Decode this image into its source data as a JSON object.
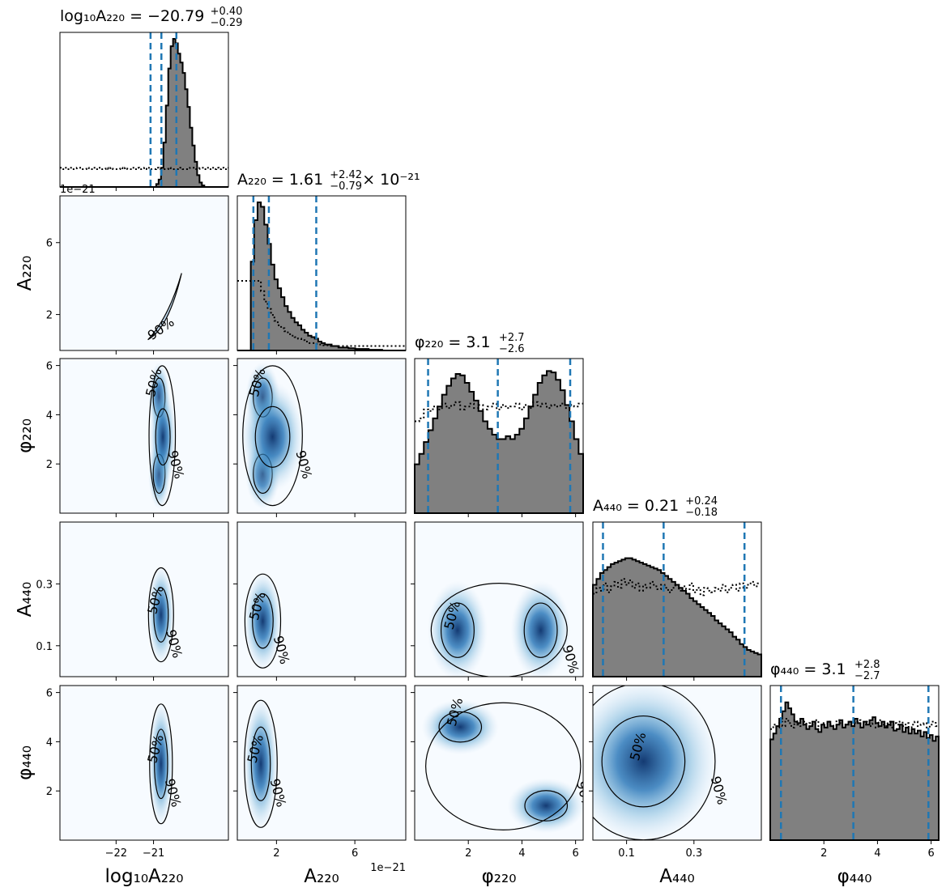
{
  "chart_data": {
    "type": "corner",
    "parameters": [
      {
        "key": "logA220",
        "xlabel": "log₁₀A₂₂₀",
        "range": [
          -23.5,
          -19.0
        ],
        "ticks": [
          -22,
          -21
        ],
        "tick_labels": [
          "−22",
          "−21"
        ]
      },
      {
        "key": "A220",
        "xlabel": "A₂₂₀",
        "range": [
          0.0,
          8.6
        ],
        "ticks": [
          2,
          6
        ],
        "tick_labels": [
          "2",
          "6"
        ],
        "offset": "1e−21"
      },
      {
        "key": "phi220",
        "xlabel": "φ₂₂₀",
        "range": [
          0.0,
          6.283
        ],
        "ticks": [
          2,
          4,
          6
        ],
        "tick_labels": [
          "2",
          "4",
          "6"
        ]
      },
      {
        "key": "A440",
        "xlabel": "A₄₄₀",
        "range": [
          0.0,
          0.5
        ],
        "ticks": [
          0.1,
          0.3
        ],
        "tick_labels": [
          "0.1",
          "0.3"
        ]
      },
      {
        "key": "phi440",
        "xlabel": "φ₄₄₀",
        "range": [
          0.0,
          6.283
        ],
        "ticks": [
          2,
          4,
          6
        ],
        "tick_labels": [
          "2",
          "4",
          "6"
        ]
      }
    ],
    "titles": [
      {
        "main": "log₁₀A₂₂₀ = −20.79",
        "plus": "+0.40",
        "minus": "−0.29",
        "tail": ""
      },
      {
        "main": "A₂₂₀ = 1.61",
        "plus": "+2.42",
        "minus": "−0.79",
        "tail": "× 10⁻²¹"
      },
      {
        "main": "φ₂₂₀ = 3.1",
        "plus": "+2.7",
        "minus": "−2.6",
        "tail": ""
      },
      {
        "main": "A₄₄₀ = 0.21",
        "plus": "+0.24",
        "minus": "−0.18",
        "tail": ""
      },
      {
        "main": "φ₄₄₀ = 3.1",
        "plus": "+2.8",
        "minus": "−2.7",
        "tail": ""
      }
    ],
    "quantiles": [
      [
        -21.08,
        -20.79,
        -20.39
      ],
      [
        0.82,
        1.61,
        4.03
      ],
      [
        0.5,
        3.1,
        5.8
      ],
      [
        0.03,
        0.21,
        0.45
      ],
      [
        0.4,
        3.1,
        5.9
      ]
    ],
    "histograms": [
      {
        "values": [
          0,
          0,
          0,
          0,
          0,
          0,
          0,
          0,
          0,
          0,
          0,
          0,
          0,
          0,
          0,
          0,
          0,
          0,
          0,
          0,
          0,
          0,
          0,
          0,
          0,
          0,
          0,
          0,
          0,
          0,
          0,
          0,
          0,
          0,
          0,
          0,
          0,
          0,
          0,
          0,
          0.02,
          0.05,
          0.13,
          0.3,
          0.55,
          0.8,
          0.95,
          1.0,
          0.97,
          0.9,
          0.84,
          0.77,
          0.66,
          0.54,
          0.4,
          0.28,
          0.17,
          0.08,
          0.03,
          0.01,
          0,
          0,
          0,
          0,
          0,
          0,
          0,
          0,
          0,
          0
        ],
        "prior": [
          0.13,
          0.12,
          0.13,
          0.12,
          0.13,
          0.12,
          0.12,
          0.13,
          0.13,
          0.12,
          0.12,
          0.13,
          0.12,
          0.12,
          0.13,
          0.12,
          0.13,
          0.12,
          0.12,
          0.13,
          0.12,
          0.13,
          0.12,
          0.12,
          0.12,
          0.13,
          0.12,
          0.13,
          0.12,
          0.12,
          0.13,
          0.12,
          0.13,
          0.12,
          0.12,
          0.13,
          0.12,
          0.13,
          0.12,
          0.12,
          0.13,
          0.12,
          0.12,
          0.12,
          0.12,
          0.13,
          0.12,
          0.12,
          0.12,
          0.12,
          0.13,
          0.12,
          0.12,
          0.12,
          0.13,
          0.13,
          0.12,
          0.12,
          0.13,
          0.13,
          0.12,
          0.13,
          0.12,
          0.13,
          0.12,
          0.13,
          0.12,
          0.13,
          0.12,
          0.13
        ]
      },
      {
        "values": [
          0,
          0,
          0,
          0,
          0.6,
          0.88,
          1.0,
          0.97,
          0.85,
          0.72,
          0.58,
          0.48,
          0.42,
          0.36,
          0.3,
          0.26,
          0.22,
          0.19,
          0.17,
          0.14,
          0.12,
          0.1,
          0.09,
          0.08,
          0.06,
          0.05,
          0.04,
          0.04,
          0.03,
          0.03,
          0.02,
          0.02,
          0.02,
          0.015,
          0.015,
          0.01,
          0.01,
          0.01,
          0.01,
          0.005,
          0.005,
          0.005,
          0.005,
          0,
          0,
          0,
          0,
          0,
          0,
          0
        ],
        "prior": [
          0.47,
          0.47,
          0.47,
          0.47,
          0.47,
          0.47,
          0.47,
          0.4,
          0.33,
          0.28,
          0.24,
          0.2,
          0.17,
          0.15,
          0.13,
          0.11,
          0.1,
          0.09,
          0.08,
          0.07,
          0.06,
          0.05,
          0.05,
          0.045,
          0.04,
          0.035,
          0.035,
          0.03,
          0.03,
          0.03,
          0.03,
          0.03,
          0.03,
          0.03,
          0.03,
          0.03,
          0.03,
          0.03,
          0.03,
          0.03,
          0.03,
          0.03,
          0.03,
          0.03,
          0.03,
          0.03,
          0.03,
          0.03,
          0.03,
          0.03
        ]
      },
      {
        "values": [
          0.33,
          0.4,
          0.48,
          0.56,
          0.64,
          0.72,
          0.8,
          0.86,
          0.91,
          0.94,
          0.93,
          0.88,
          0.82,
          0.76,
          0.69,
          0.62,
          0.57,
          0.53,
          0.5,
          0.5,
          0.52,
          0.5,
          0.53,
          0.57,
          0.64,
          0.72,
          0.8,
          0.88,
          0.93,
          0.96,
          0.95,
          0.9,
          0.83,
          0.73,
          0.62,
          0.5,
          0.4
        ],
        "prior": [
          0.62,
          0.64,
          0.7,
          0.69,
          0.72,
          0.7,
          0.74,
          0.71,
          0.73,
          0.75,
          0.7,
          0.72,
          0.74,
          0.71,
          0.73,
          0.7,
          0.72,
          0.74,
          0.7,
          0.73,
          0.71,
          0.72,
          0.74,
          0.7,
          0.73,
          0.71,
          0.75,
          0.72,
          0.74,
          0.71,
          0.73,
          0.72,
          0.74,
          0.71,
          0.73,
          0.72,
          0.74
        ]
      },
      {
        "values": [
          0.62,
          0.66,
          0.7,
          0.72,
          0.74,
          0.76,
          0.77,
          0.78,
          0.79,
          0.8,
          0.8,
          0.79,
          0.78,
          0.77,
          0.76,
          0.75,
          0.74,
          0.73,
          0.72,
          0.7,
          0.68,
          0.66,
          0.64,
          0.62,
          0.6,
          0.58,
          0.56,
          0.53,
          0.51,
          0.49,
          0.47,
          0.45,
          0.43,
          0.41,
          0.38,
          0.36,
          0.34,
          0.32,
          0.3,
          0.27,
          0.25,
          0.22,
          0.2,
          0.18,
          0.17,
          0.16,
          0.15
        ],
        "prior": [
          0.56,
          0.6,
          0.58,
          0.63,
          0.57,
          0.61,
          0.64,
          0.6,
          0.66,
          0.62,
          0.65,
          0.6,
          0.63,
          0.58,
          0.62,
          0.6,
          0.64,
          0.61,
          0.59,
          0.62,
          0.6,
          0.57,
          0.6,
          0.62,
          0.58,
          0.61,
          0.59,
          0.63,
          0.57,
          0.6,
          0.55,
          0.6,
          0.58,
          0.57,
          0.6,
          0.58,
          0.62,
          0.57,
          0.6,
          0.62,
          0.58,
          0.63,
          0.6,
          0.62,
          0.64,
          0.61,
          0.63
        ]
      },
      {
        "values": [
          0.68,
          0.72,
          0.77,
          0.82,
          0.87,
          0.93,
          0.89,
          0.85,
          0.8,
          0.79,
          0.82,
          0.78,
          0.75,
          0.77,
          0.8,
          0.75,
          0.73,
          0.78,
          0.76,
          0.8,
          0.77,
          0.75,
          0.78,
          0.81,
          0.76,
          0.78,
          0.8,
          0.77,
          0.82,
          0.79,
          0.76,
          0.8,
          0.78,
          0.81,
          0.83,
          0.79,
          0.77,
          0.8,
          0.76,
          0.78,
          0.8,
          0.74,
          0.75,
          0.78,
          0.73,
          0.76,
          0.72,
          0.75,
          0.72,
          0.74,
          0.7,
          0.73,
          0.69,
          0.71,
          0.67,
          0.7
        ],
        "prior": [
          0.75,
          0.78,
          0.76,
          0.8,
          0.77,
          0.82,
          0.79,
          0.76,
          0.81,
          0.78,
          0.77,
          0.8,
          0.76,
          0.79,
          0.78,
          0.81,
          0.77,
          0.79,
          0.76,
          0.8,
          0.78,
          0.77,
          0.81,
          0.79,
          0.76,
          0.78,
          0.8,
          0.77,
          0.79,
          0.81,
          0.76,
          0.78,
          0.8,
          0.77,
          0.79,
          0.76,
          0.81,
          0.78,
          0.77,
          0.8,
          0.76,
          0.79,
          0.78,
          0.8,
          0.77,
          0.79,
          0.76,
          0.78,
          0.8,
          0.77,
          0.78,
          0.79,
          0.76,
          0.78,
          0.8,
          0.77
        ]
      }
    ],
    "density_blobs": [
      {
        "row": 1,
        "col": 0,
        "blobs": []
      },
      {
        "row": 2,
        "col": 0,
        "blobs": [
          {
            "x": -20.85,
            "y": 4.7,
            "sx": 0.18,
            "sy": 0.9
          },
          {
            "x": -20.85,
            "y": 1.6,
            "sx": 0.18,
            "sy": 0.9
          },
          {
            "x": -20.75,
            "y": 3.1,
            "sx": 0.22,
            "sy": 1.3
          }
        ]
      },
      {
        "row": 3,
        "col": 0,
        "blobs": [
          {
            "x": -20.8,
            "y": 0.2,
            "sx": 0.22,
            "sy": 0.1
          }
        ]
      },
      {
        "row": 4,
        "col": 0,
        "blobs": [
          {
            "x": -20.8,
            "y": 3.1,
            "sx": 0.2,
            "sy": 1.6
          }
        ]
      },
      {
        "row": 2,
        "col": 1,
        "blobs": [
          {
            "x": 1.3,
            "y": 4.7,
            "sx": 0.55,
            "sy": 0.9
          },
          {
            "x": 1.3,
            "y": 1.6,
            "sx": 0.55,
            "sy": 0.9
          },
          {
            "x": 1.8,
            "y": 3.1,
            "sx": 1.0,
            "sy": 1.4
          }
        ]
      },
      {
        "row": 3,
        "col": 1,
        "blobs": [
          {
            "x": 1.3,
            "y": 0.18,
            "sx": 0.6,
            "sy": 0.1
          }
        ]
      },
      {
        "row": 4,
        "col": 1,
        "blobs": [
          {
            "x": 1.2,
            "y": 3.1,
            "sx": 0.55,
            "sy": 1.7
          }
        ]
      },
      {
        "row": 3,
        "col": 2,
        "blobs": [
          {
            "x": 1.6,
            "y": 0.15,
            "sx": 0.7,
            "sy": 0.1
          },
          {
            "x": 4.7,
            "y": 0.15,
            "sx": 0.7,
            "sy": 0.1
          }
        ]
      },
      {
        "row": 4,
        "col": 2,
        "blobs": [
          {
            "x": 1.7,
            "y": 4.6,
            "sx": 0.9,
            "sy": 0.7
          },
          {
            "x": 4.9,
            "y": 1.4,
            "sx": 0.9,
            "sy": 0.7
          }
        ]
      },
      {
        "row": 4,
        "col": 3,
        "blobs": [
          {
            "x": 0.15,
            "y": 3.2,
            "sx": 0.14,
            "sy": 2.1
          }
        ]
      }
    ],
    "contour_labels": [
      "50%",
      "90%"
    ],
    "offset_label": "1e−21",
    "title": "",
    "grid": false
  }
}
